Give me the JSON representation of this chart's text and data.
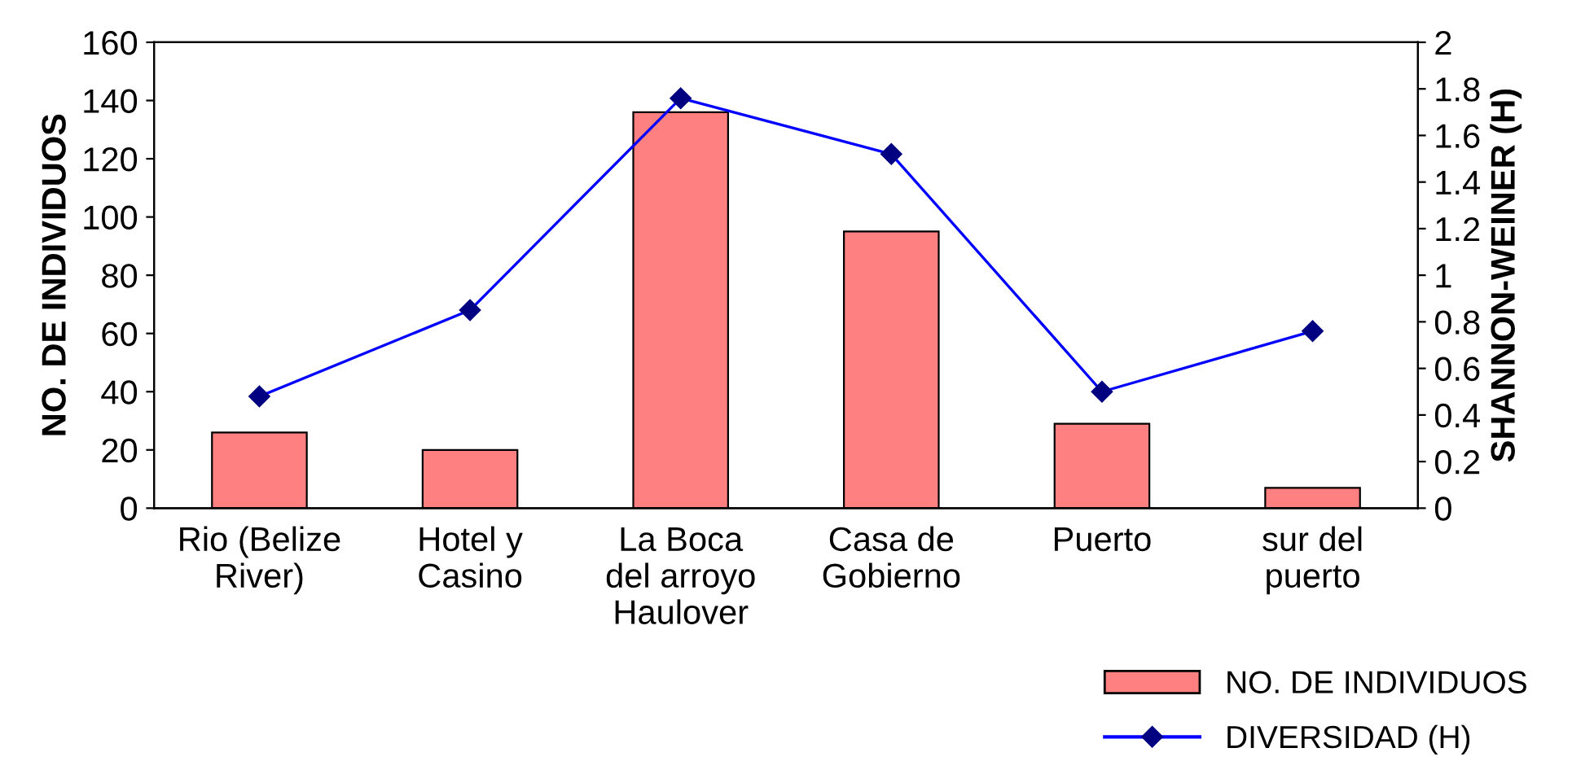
{
  "chart_data": {
    "type": "bar",
    "categories": [
      "Rio (Belize\nRiver)",
      "Hotel y\nCasino",
      "La Boca\ndel arroyo\nHaulover",
      "Casa de\nGobierno",
      "Puerto",
      "sur del\npuerto"
    ],
    "ylabel": "NO. DE INDIVIDUOS",
    "y2label": "SHANNON-WEINER (H)",
    "ylim": [
      0,
      160
    ],
    "yticks": [
      0,
      20,
      40,
      60,
      80,
      100,
      120,
      140,
      160
    ],
    "y2lim": [
      0,
      2
    ],
    "y2ticks": [
      0,
      {
        "value": 0.2,
        "label": "0.2"
      },
      {
        "value": 0.4,
        "label": "0.4"
      },
      {
        "value": 0.6,
        "label": "0.6"
      },
      {
        "value": 0.8,
        "label": "0.8"
      },
      1,
      {
        "value": 1.2,
        "label": "1.2"
      },
      {
        "value": 1.4,
        "label": "1.4"
      },
      {
        "value": 1.6,
        "label": "1.6"
      },
      {
        "value": 1.8,
        "label": "1.8"
      },
      2
    ],
    "legend": "bottom right",
    "grid": false,
    "series": [
      {
        "name": "NO. DE INDIVIDUOS",
        "color": "#ff8080",
        "values": [
          26,
          20,
          136,
          95,
          29,
          7
        ]
      },
      {
        "name": "DIVERSIDAD (H)",
        "type": "line",
        "axis": "y2",
        "color": "#0000ff",
        "marker": "diamond",
        "values": [
          0.48,
          0.85,
          1.76,
          1.52,
          0.5,
          0.76
        ]
      }
    ]
  }
}
